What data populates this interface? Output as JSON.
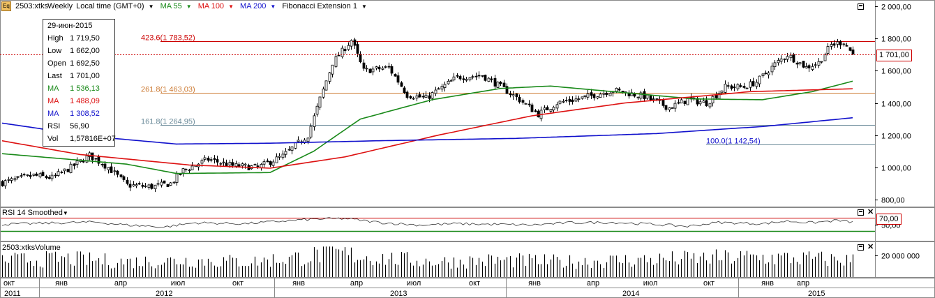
{
  "header": {
    "symbol": "2503:xtks",
    "period": "Weekly",
    "timezone": "Local time (GMT+0)",
    "ma55_label": "MA 55",
    "ma100_label": "MA 100",
    "ma200_label": "MA 200",
    "fib_label": "Fibonacci Extension 1"
  },
  "info": {
    "date": "29-июн-2015",
    "high_label": "High",
    "high": "1 719,50",
    "low_label": "Low",
    "low": "1 662,00",
    "open_label": "Open",
    "open": "1 692,50",
    "last_label": "Last",
    "last": "1 701,00",
    "ma_label": "MA",
    "ma55": "1 536,13",
    "ma100": "1 488,09",
    "ma200": "1 308,52",
    "rsi_label": "RSI",
    "rsi": "56,90",
    "vol_label": "Vol",
    "vol": "1,57816E+07"
  },
  "last_price_tag": "1 701,00",
  "rsi_panel": {
    "title": "RSI 14 Smoothed",
    "level_tag": "70,00"
  },
  "volume_panel": {
    "title": "2503:xtksVolume"
  },
  "colors": {
    "ma55": "#1a8a1a",
    "ma100": "#dd1111",
    "ma200": "#1010cc",
    "fib": "#cc7a33",
    "price_line": "#cc0000",
    "fib_line_neutral": "#6a8a99"
  },
  "chart_data": {
    "type": "candlestick",
    "period": "weekly",
    "price_axis": {
      "min": 800,
      "max": 2000,
      "ticks": [
        "2 000,00",
        "1 800,00",
        "1 600,00",
        "1 400,00",
        "1 200,00",
        "1 000,00",
        "800,00"
      ],
      "tick_values": [
        2000,
        1800,
        1600,
        1400,
        1200,
        1000,
        800
      ]
    },
    "rsi_axis": {
      "ticks": [
        "50,00"
      ],
      "tick_values": [
        50
      ],
      "overbought": 70,
      "oversold": 30
    },
    "volume_axis": {
      "ticks": [
        "20 000 000"
      ],
      "tick_values": [
        20000000
      ]
    },
    "fibonacci": [
      {
        "label": "423.6(1 783,52)",
        "value": 1783.52
      },
      {
        "label": "261.8(1 463,03)",
        "value": 1463.03
      },
      {
        "label": "161.8(1 264,95)",
        "value": 1264.95
      },
      {
        "label": "100.0(1 142,54)",
        "value": 1142.54
      }
    ],
    "last_price": 1701,
    "time_axis": {
      "months": [
        "окт",
        "янв",
        "апр",
        "июл",
        "окт",
        "янв",
        "апр",
        "июл",
        "окт",
        "янв",
        "апр",
        "июл",
        "окт",
        "янв",
        "апр"
      ],
      "years": [
        "2011",
        "2012",
        "2013",
        "2014",
        "2015"
      ]
    },
    "series": [
      {
        "name": "MA 55",
        "anchors": [
          [
            0,
            1085
          ],
          [
            40,
            1020
          ],
          [
            56,
            962
          ],
          [
            86,
            968
          ],
          [
            100,
            1100
          ],
          [
            115,
            1300
          ],
          [
            138,
            1420
          ],
          [
            160,
            1490
          ],
          [
            176,
            1505
          ],
          [
            196,
            1470
          ],
          [
            222,
            1425
          ],
          [
            244,
            1420
          ],
          [
            260,
            1470
          ],
          [
            273,
            1535
          ]
        ]
      },
      {
        "name": "MA 100",
        "anchors": [
          [
            0,
            1165
          ],
          [
            25,
            1080
          ],
          [
            60,
            1015
          ],
          [
            86,
            995
          ],
          [
            110,
            1065
          ],
          [
            140,
            1200
          ],
          [
            170,
            1320
          ],
          [
            200,
            1400
          ],
          [
            240,
            1470
          ],
          [
            273,
            1488
          ]
        ]
      },
      {
        "name": "MA 200",
        "anchors": [
          [
            0,
            1275
          ],
          [
            30,
            1190
          ],
          [
            56,
            1145
          ],
          [
            86,
            1150
          ],
          [
            120,
            1165
          ],
          [
            165,
            1180
          ],
          [
            210,
            1210
          ],
          [
            245,
            1255
          ],
          [
            273,
            1308
          ]
        ]
      }
    ],
    "close_anchors": [
      [
        0,
        905
      ],
      [
        10,
        950
      ],
      [
        16,
        935
      ],
      [
        22,
        1000
      ],
      [
        28,
        1075
      ],
      [
        34,
        1000
      ],
      [
        40,
        890
      ],
      [
        48,
        880
      ],
      [
        54,
        900
      ],
      [
        58,
        980
      ],
      [
        66,
        1050
      ],
      [
        74,
        1010
      ],
      [
        82,
        1000
      ],
      [
        90,
        1070
      ],
      [
        98,
        1200
      ],
      [
        106,
        1650
      ],
      [
        112,
        1790
      ],
      [
        116,
        1600
      ],
      [
        124,
        1620
      ],
      [
        130,
        1450
      ],
      [
        136,
        1430
      ],
      [
        146,
        1560
      ],
      [
        154,
        1570
      ],
      [
        160,
        1500
      ],
      [
        166,
        1420
      ],
      [
        172,
        1330
      ],
      [
        178,
        1400
      ],
      [
        186,
        1430
      ],
      [
        196,
        1480
      ],
      [
        206,
        1440
      ],
      [
        214,
        1370
      ],
      [
        220,
        1420
      ],
      [
        226,
        1400
      ],
      [
        232,
        1500
      ],
      [
        238,
        1500
      ],
      [
        242,
        1530
      ],
      [
        248,
        1640
      ],
      [
        252,
        1700
      ],
      [
        258,
        1620
      ],
      [
        262,
        1650
      ],
      [
        266,
        1760
      ],
      [
        270,
        1780
      ],
      [
        273,
        1701
      ]
    ],
    "rsi_anchors": [
      [
        0,
        50
      ],
      [
        20,
        55
      ],
      [
        30,
        57
      ],
      [
        40,
        48
      ],
      [
        52,
        42
      ],
      [
        62,
        55
      ],
      [
        78,
        52
      ],
      [
        90,
        60
      ],
      [
        100,
        66
      ],
      [
        110,
        68
      ],
      [
        122,
        55
      ],
      [
        134,
        48
      ],
      [
        146,
        52
      ],
      [
        158,
        50
      ],
      [
        170,
        48
      ],
      [
        182,
        55
      ],
      [
        196,
        56
      ],
      [
        210,
        50
      ],
      [
        220,
        44
      ],
      [
        230,
        56
      ],
      [
        244,
        52
      ],
      [
        252,
        60
      ],
      [
        260,
        55
      ],
      [
        268,
        62
      ],
      [
        273,
        57
      ]
    ],
    "volume_anchors": [
      [
        0,
        0.55
      ],
      [
        20,
        0.6
      ],
      [
        40,
        0.5
      ],
      [
        60,
        0.55
      ],
      [
        80,
        0.5
      ],
      [
        96,
        0.65
      ],
      [
        106,
        0.8
      ],
      [
        114,
        0.7
      ],
      [
        124,
        0.6
      ],
      [
        140,
        0.5
      ],
      [
        160,
        0.55
      ],
      [
        180,
        0.5
      ],
      [
        200,
        0.55
      ],
      [
        220,
        0.6
      ],
      [
        240,
        0.65
      ],
      [
        260,
        0.6
      ],
      [
        273,
        0.55
      ]
    ]
  }
}
